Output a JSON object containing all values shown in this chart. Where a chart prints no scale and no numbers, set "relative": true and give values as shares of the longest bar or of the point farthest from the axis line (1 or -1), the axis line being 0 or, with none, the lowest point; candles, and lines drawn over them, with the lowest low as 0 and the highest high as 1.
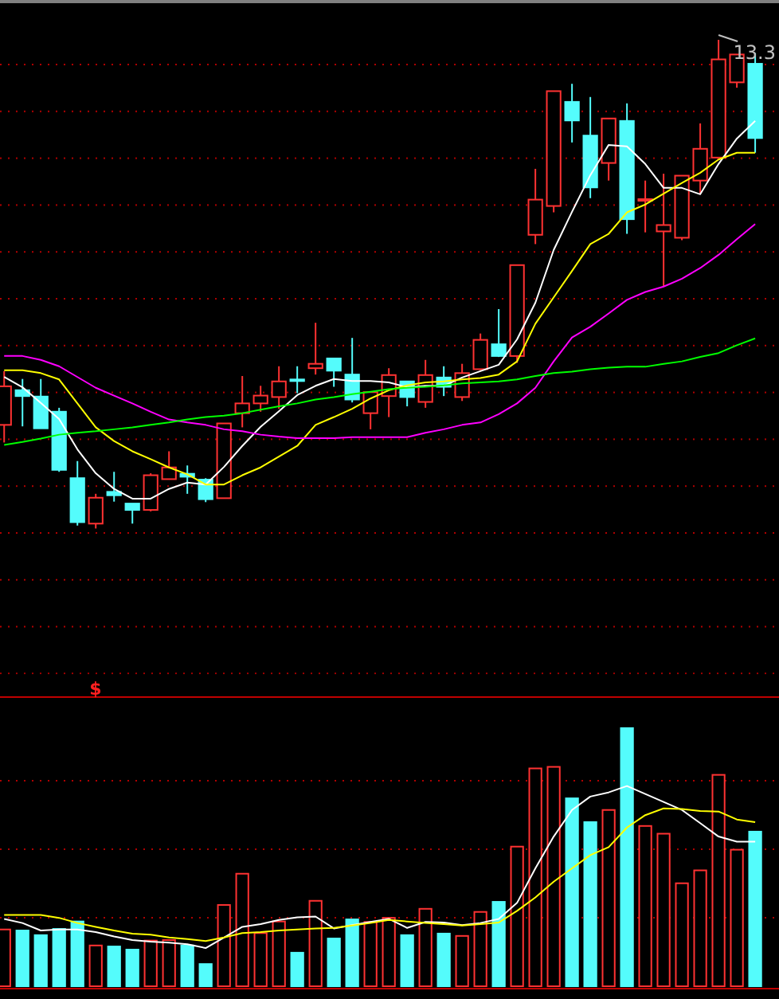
{
  "chart_data": [
    {
      "type": "candlestick",
      "relative": true,
      "categories": [
        null,
        null,
        null,
        null,
        null,
        null,
        null,
        null,
        null,
        null,
        null,
        null,
        null,
        null,
        null,
        null,
        null,
        null,
        null,
        null,
        null,
        null,
        null,
        null,
        null,
        null,
        null,
        null,
        null,
        null,
        null,
        null,
        null,
        null,
        null,
        null,
        null,
        null,
        null,
        null,
        null,
        null
      ],
      "ohlc": [
        [
          0.212,
          0.322,
          0.176,
          0.291
        ],
        [
          0.283,
          0.306,
          0.209,
          0.271
        ],
        [
          0.27,
          0.306,
          0.205,
          0.205
        ],
        [
          0.239,
          0.247,
          0.116,
          0.12
        ],
        [
          0.103,
          0.138,
          0.006,
          0.013
        ],
        [
          0.01,
          0.071,
          0,
          0.063
        ],
        [
          0.075,
          0.116,
          0.055,
          0.068
        ],
        [
          0.051,
          0.051,
          0.01,
          0.038
        ],
        [
          0.038,
          0.113,
          0.035,
          0.109
        ],
        [
          0.101,
          0.158,
          0.101,
          0.125
        ],
        [
          0.112,
          0.129,
          0.071,
          0.106
        ],
        [
          0.1,
          0.103,
          0.054,
          0.06
        ],
        [
          0.062,
          0.215,
          0.062,
          0.215
        ],
        [
          0.236,
          0.312,
          0.207,
          0.256
        ],
        [
          0.256,
          0.292,
          0.239,
          0.272
        ],
        [
          0.269,
          0.332,
          0.245,
          0.301
        ],
        [
          0.305,
          0.332,
          0.277,
          0.302
        ],
        [
          0.328,
          0.421,
          0.315,
          0.337
        ],
        [
          0.348,
          0.348,
          0.29,
          0.323
        ],
        [
          0.315,
          0.39,
          0.258,
          0.264
        ],
        [
          0.236,
          0.279,
          0.203,
          0.279
        ],
        [
          0.271,
          0.328,
          0.228,
          0.314
        ],
        [
          0.301,
          0.301,
          0.25,
          0.269
        ],
        [
          0.259,
          0.345,
          0.247,
          0.314
        ],
        [
          0.309,
          0.332,
          0.271,
          0.29
        ],
        [
          0.269,
          0.337,
          0.261,
          0.318
        ],
        [
          0.326,
          0.399,
          0.324,
          0.386
        ],
        [
          0.377,
          0.449,
          0.351,
          0.353
        ],
        [
          0.353,
          0.539,
          0.339,
          0.539
        ],
        [
          0.601,
          0.736,
          0.582,
          0.673
        ],
        [
          0.66,
          0.895,
          0.647,
          0.895
        ],
        [
          0.873,
          0.91,
          0.79,
          0.835
        ],
        [
          0.804,
          0.883,
          0.676,
          0.698
        ],
        [
          0.748,
          0.839,
          0.712,
          0.839
        ],
        [
          0.834,
          0.87,
          0.603,
          0.633
        ],
        [
          0.671,
          0.712,
          0.606,
          0.674
        ],
        [
          0.608,
          0.726,
          0.495,
          0.621
        ],
        [
          0.595,
          0.722,
          0.59,
          0.722
        ],
        [
          0.712,
          0.829,
          0.685,
          0.777
        ],
        [
          0.759,
          1,
          0.759,
          0.96
        ],
        [
          0.913,
          0.97,
          0.902,
          0.97
        ],
        [
          0.951,
          0.973,
          0.769,
          0.799
        ]
      ],
      "colors": [
        "#ff3232",
        "#54fcfc",
        "#54fcfc",
        "#54fcfc",
        "#54fcfc",
        "#ff3232",
        "#54fcfc",
        "#54fcfc",
        "#ff3232",
        "#ff3232",
        "#54fcfc",
        "#54fcfc",
        "#ff3232",
        "#ff3232",
        "#ff3232",
        "#ff3232",
        "#54fcfc",
        "#ff3232",
        "#54fcfc",
        "#54fcfc",
        "#ff3232",
        "#ff3232",
        "#54fcfc",
        "#ff3232",
        "#54fcfc",
        "#ff3232",
        "#ff3232",
        "#54fcfc",
        "#ff3232",
        "#ff3232",
        "#ff3232",
        "#54fcfc",
        "#54fcfc",
        "#ff3232",
        "#54fcfc",
        "#ff3232",
        "#ff3232",
        "#ff3232",
        "#ff3232",
        "#ff3232",
        "#ff3232",
        "#54fcfc"
      ],
      "series": [
        {
          "type": "line",
          "color": "#ffffff",
          "values": [
            0.31,
            0.289,
            0.257,
            0.224,
            0.162,
            0.113,
            0.081,
            0.061,
            0.061,
            0.081,
            0.094,
            0.09,
            0.126,
            0.169,
            0.208,
            0.24,
            0.273,
            0.292,
            0.306,
            0.302,
            0.302,
            0.299,
            0.289,
            0.292,
            0.292,
            0.309,
            0.322,
            0.335,
            0.387,
            0.462,
            0.57,
            0.648,
            0.723,
            0.785,
            0.782,
            0.746,
            0.697,
            0.697,
            0.684,
            0.746,
            0.798,
            0.834
          ]
        },
        {
          "type": "line",
          "color": "#ffff00",
          "values": [
            0.324,
            0.324,
            0.318,
            0.305,
            0.256,
            0.207,
            0.179,
            0.158,
            0.142,
            0.125,
            0.111,
            0.09,
            0.09,
            0.109,
            0.125,
            0.147,
            0.169,
            0.212,
            0.228,
            0.245,
            0.266,
            0.283,
            0.293,
            0.299,
            0.301,
            0.305,
            0.308,
            0.315,
            0.342,
            0.419,
            0.473,
            0.527,
            0.582,
            0.603,
            0.647,
            0.663,
            0.685,
            0.707,
            0.728,
            0.755,
            0.769,
            0.769
          ]
        },
        {
          "type": "line",
          "color": "#ff00ff",
          "values": [
            0.353,
            0.353,
            0.345,
            0.332,
            0.31,
            0.288,
            0.272,
            0.256,
            0.239,
            0.223,
            0.217,
            0.212,
            0.203,
            0.199,
            0.192,
            0.188,
            0.185,
            0.185,
            0.185,
            0.187,
            0.187,
            0.187,
            0.187,
            0.196,
            0.203,
            0.212,
            0.217,
            0.234,
            0.256,
            0.288,
            0.342,
            0.391,
            0.413,
            0.44,
            0.468,
            0.484,
            0.495,
            0.511,
            0.533,
            0.56,
            0.592,
            0.623
          ]
        },
        {
          "type": "line",
          "color": "#00ff00",
          "values": [
            0.171,
            0.177,
            0.184,
            0.192,
            0.196,
            0.199,
            0.203,
            0.207,
            0.212,
            0.217,
            0.223,
            0.228,
            0.231,
            0.236,
            0.243,
            0.25,
            0.256,
            0.264,
            0.269,
            0.275,
            0.28,
            0.285,
            0.288,
            0.29,
            0.293,
            0.297,
            0.299,
            0.301,
            0.305,
            0.312,
            0.318,
            0.321,
            0.326,
            0.329,
            0.331,
            0.331,
            0.337,
            0.342,
            0.351,
            0.359,
            0.375,
            0.389
          ]
        }
      ],
      "annotations": [
        "13.3"
      ]
    },
    {
      "type": "bar",
      "relative": true,
      "categories": [
        null,
        null,
        null,
        null,
        null,
        null,
        null,
        null,
        null,
        null,
        null,
        null,
        null,
        null,
        null,
        null,
        null,
        null,
        null,
        null,
        null,
        null,
        null,
        null,
        null,
        null,
        null,
        null,
        null,
        null,
        null,
        null,
        null,
        null,
        null,
        null,
        null,
        null,
        null,
        null,
        null,
        null
      ],
      "values": [
        0.22,
        0.216,
        0.198,
        0.222,
        0.251,
        0.158,
        0.154,
        0.142,
        0.177,
        0.179,
        0.158,
        0.086,
        0.315,
        0.436,
        0.206,
        0.251,
        0.13,
        0.331,
        0.185,
        0.259,
        0.249,
        0.265,
        0.198,
        0.3,
        0.204,
        0.195,
        0.288,
        0.327,
        0.541,
        0.844,
        0.85,
        0.728,
        0.636,
        0.683,
        1,
        0.621,
        0.591,
        0.399,
        0.449,
        0.819,
        0.529,
        0.599
      ],
      "colors": [
        "#ff3232",
        "#54fcfc",
        "#54fcfc",
        "#54fcfc",
        "#54fcfc",
        "#ff3232",
        "#54fcfc",
        "#54fcfc",
        "#ff3232",
        "#ff3232",
        "#54fcfc",
        "#54fcfc",
        "#ff3232",
        "#ff3232",
        "#ff3232",
        "#ff3232",
        "#54fcfc",
        "#ff3232",
        "#54fcfc",
        "#54fcfc",
        "#ff3232",
        "#ff3232",
        "#54fcfc",
        "#ff3232",
        "#54fcfc",
        "#ff3232",
        "#ff3232",
        "#54fcfc",
        "#ff3232",
        "#ff3232",
        "#ff3232",
        "#54fcfc",
        "#54fcfc",
        "#ff3232",
        "#54fcfc",
        "#ff3232",
        "#ff3232",
        "#ff3232",
        "#ff3232",
        "#ff3232",
        "#ff3232",
        "#54fcfc"
      ],
      "series": [
        {
          "type": "line",
          "color": "#ffffff",
          "values": [
            0.261,
            0.245,
            0.216,
            0.22,
            0.22,
            0.21,
            0.193,
            0.179,
            0.173,
            0.169,
            0.163,
            0.148,
            0.189,
            0.23,
            0.241,
            0.257,
            0.267,
            0.27,
            0.224,
            0.237,
            0.249,
            0.261,
            0.226,
            0.249,
            0.247,
            0.237,
            0.245,
            0.261,
            0.323,
            0.457,
            0.58,
            0.683,
            0.735,
            0.751,
            0.776,
            0.745,
            0.714,
            0.683,
            0.632,
            0.58,
            0.56,
            0.56
          ]
        },
        {
          "type": "line",
          "color": "#ffff00",
          "values": [
            0.276,
            0.276,
            0.276,
            0.265,
            0.245,
            0.23,
            0.216,
            0.204,
            0.2,
            0.189,
            0.183,
            0.175,
            0.189,
            0.206,
            0.21,
            0.216,
            0.22,
            0.224,
            0.226,
            0.235,
            0.245,
            0.257,
            0.251,
            0.245,
            0.241,
            0.235,
            0.241,
            0.247,
            0.292,
            0.344,
            0.405,
            0.457,
            0.508,
            0.539,
            0.615,
            0.663,
            0.689,
            0.687,
            0.679,
            0.677,
            0.646,
            0.636
          ]
        }
      ],
      "annotations": [
        "$"
      ]
    }
  ]
}
